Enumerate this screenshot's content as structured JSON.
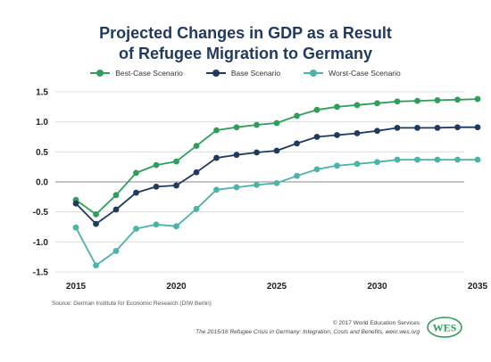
{
  "title_line1": "Projected Changes in GDP as a Result",
  "title_line2": "of Refugee Migration to Germany",
  "source": "Source: German Institute for Economic Research (DIW Berlin)",
  "credit_line1": "© 2017 World Education Services",
  "credit_line2": "The 2015/16 Refugee Crisis in Germany: Integration, Costs and Benefits, wenr.wes.org",
  "logo_text": "WES",
  "colors": {
    "title": "#1f3a5f",
    "best": "#2e9e5a",
    "base": "#1f3a5f",
    "worst": "#4bb3a8",
    "grid": "#d9d9d9",
    "zero": "#888888"
  },
  "chart_data": {
    "type": "line",
    "x": [
      2015,
      2016,
      2017,
      2018,
      2019,
      2020,
      2021,
      2022,
      2023,
      2024,
      2025,
      2026,
      2027,
      2028,
      2029,
      2030,
      2031,
      2032,
      2033,
      2034,
      2035
    ],
    "xticks": [
      "2015",
      "2020",
      "2025",
      "2030",
      "2035"
    ],
    "yticks": [
      "1.5",
      "1.0",
      "0.5",
      "0.0",
      "-0.5",
      "-1.0",
      "-1.5"
    ],
    "ylim": [
      -1.5,
      1.5
    ],
    "xlim": [
      2015,
      2035
    ],
    "grid": "horizontal",
    "legend_position": "top",
    "series": [
      {
        "name": "Best-Case Scenario",
        "color": "#2e9e5a",
        "values": [
          -0.3,
          -0.54,
          -0.22,
          0.15,
          0.28,
          0.34,
          0.6,
          0.86,
          0.91,
          0.95,
          0.98,
          1.1,
          1.2,
          1.25,
          1.28,
          1.31,
          1.34,
          1.35,
          1.36,
          1.37,
          1.38
        ]
      },
      {
        "name": "Base Scenario",
        "color": "#1f3a5f",
        "values": [
          -0.36,
          -0.7,
          -0.46,
          -0.18,
          -0.08,
          -0.06,
          0.16,
          0.4,
          0.45,
          0.49,
          0.52,
          0.64,
          0.75,
          0.78,
          0.81,
          0.85,
          0.9,
          0.9,
          0.9,
          0.91,
          0.91
        ]
      },
      {
        "name": "Worst-Case Scenario",
        "color": "#4bb3a8",
        "values": [
          -0.76,
          -1.39,
          -1.15,
          -0.78,
          -0.71,
          -0.74,
          -0.45,
          -0.13,
          -0.09,
          -0.05,
          -0.02,
          0.1,
          0.21,
          0.27,
          0.3,
          0.33,
          0.37,
          0.37,
          0.37,
          0.37,
          0.37
        ]
      }
    ]
  }
}
